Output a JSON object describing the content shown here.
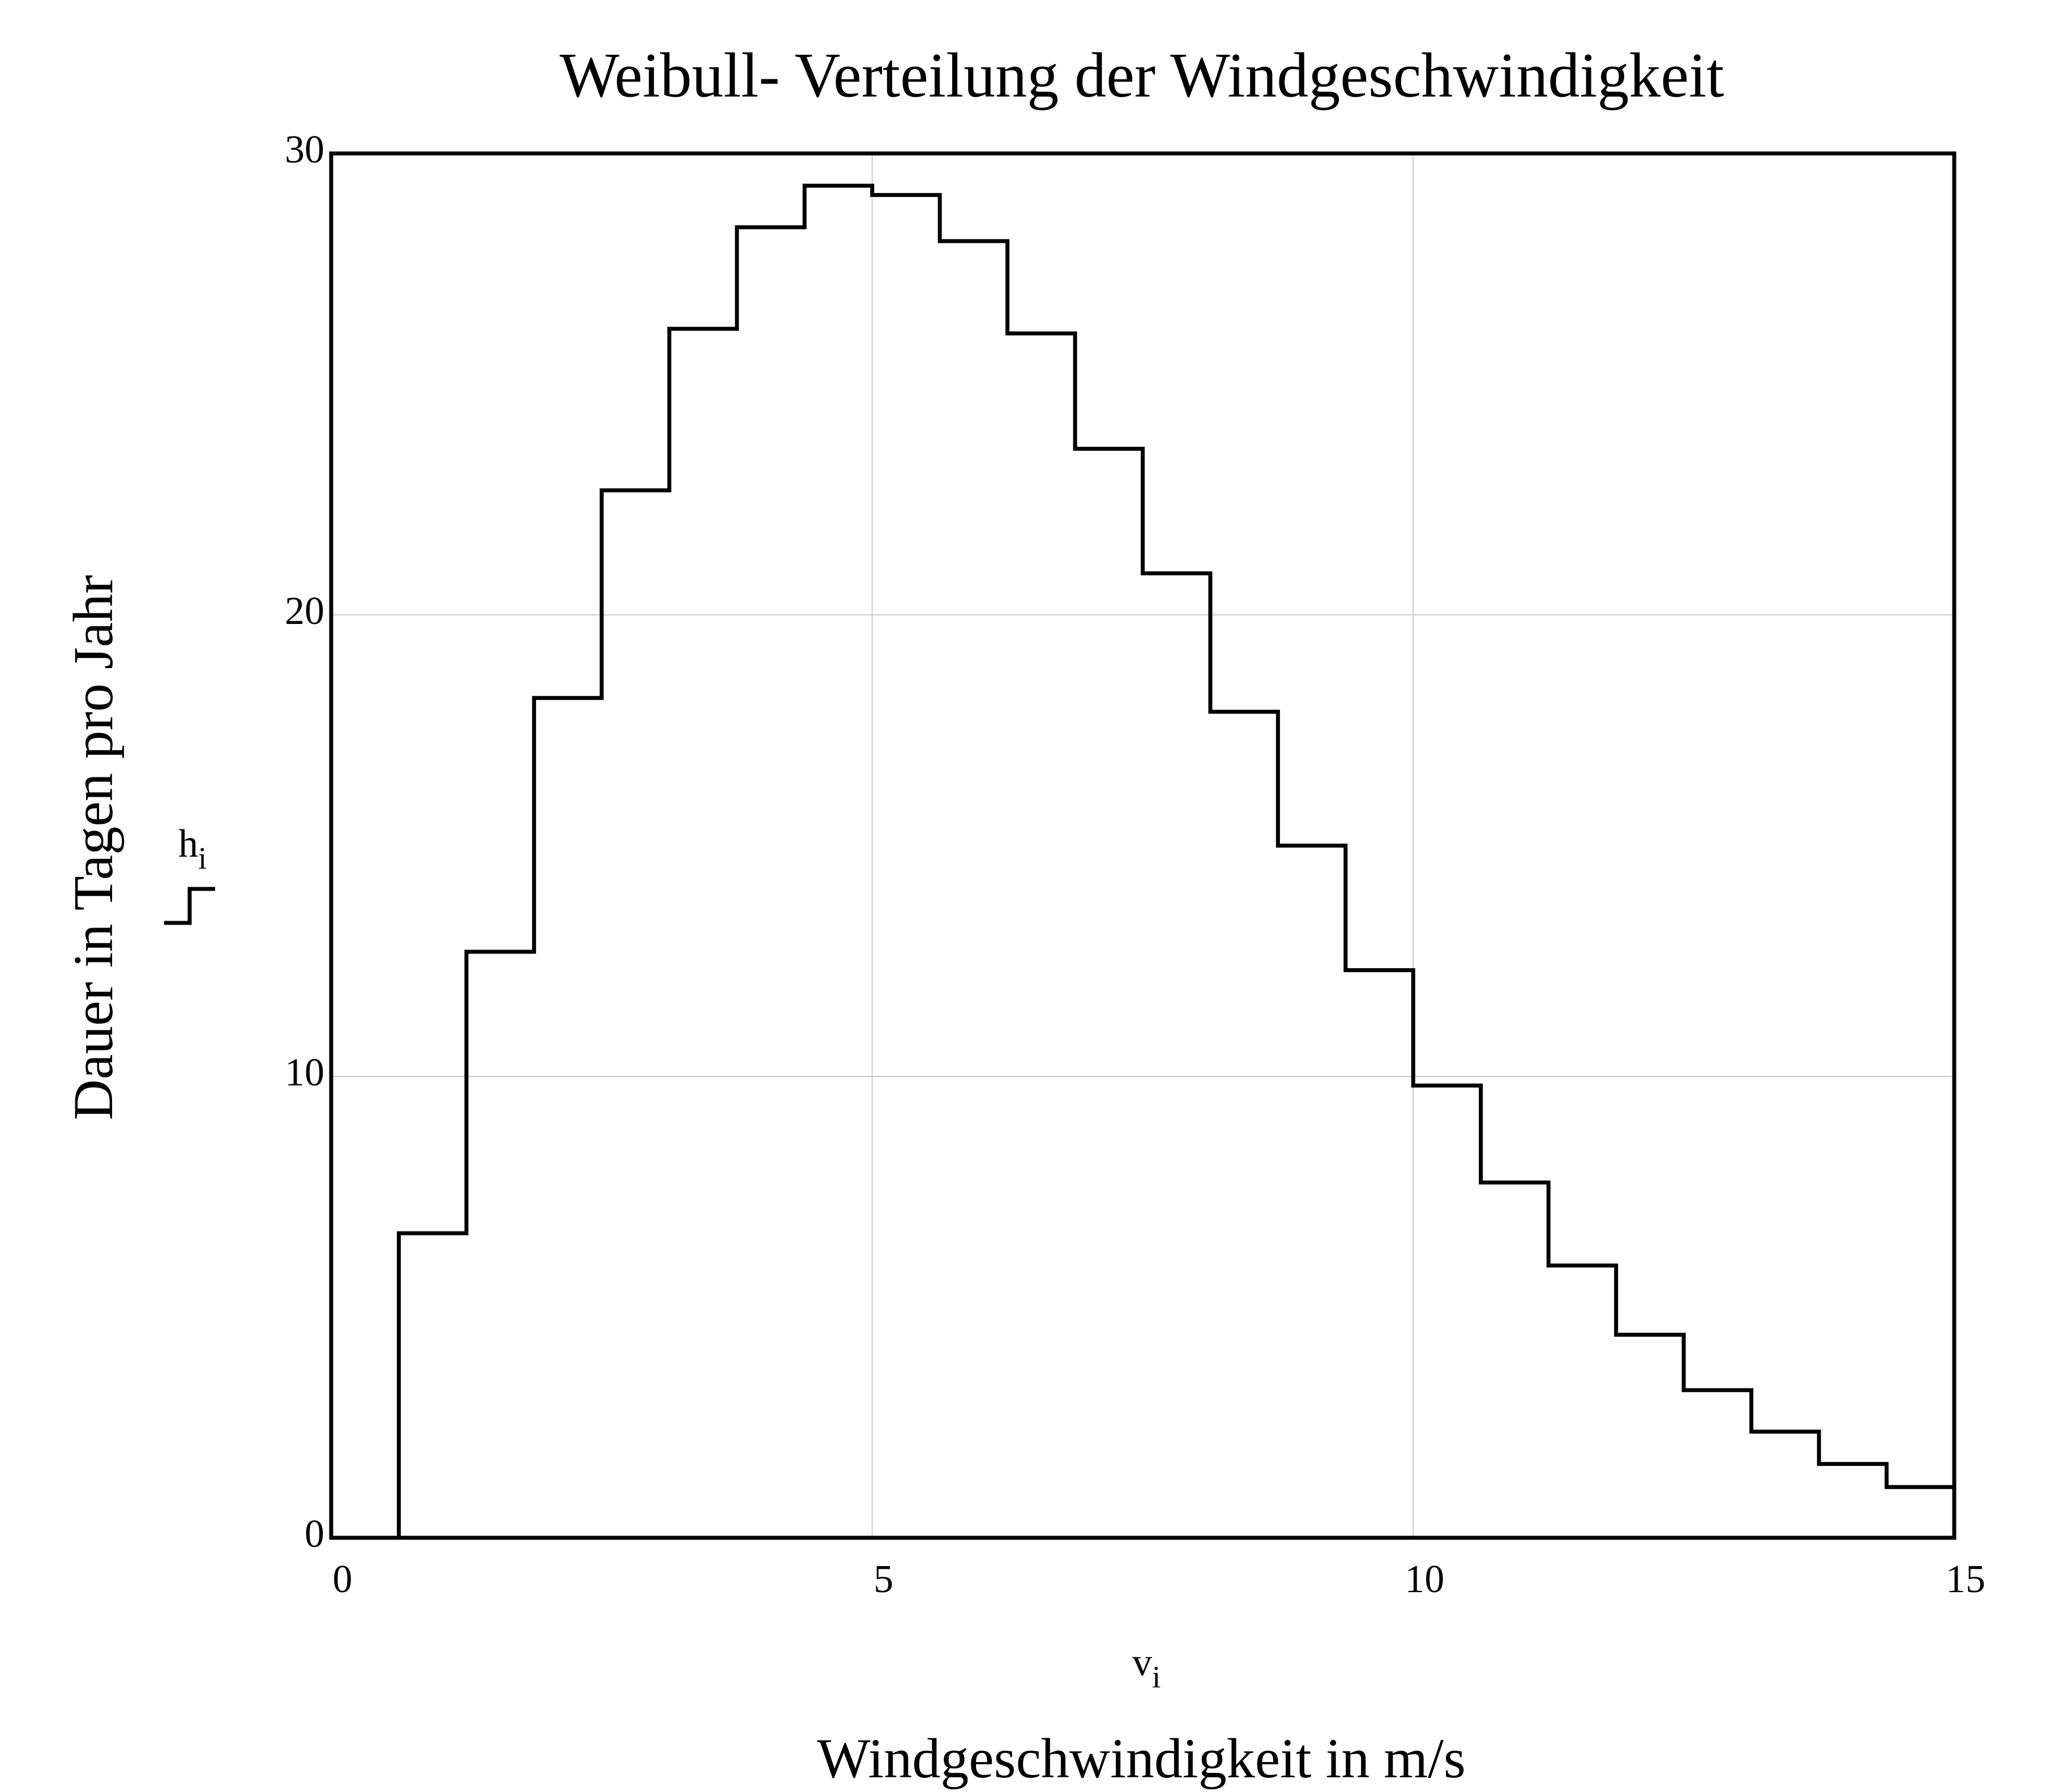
{
  "chart_data": {
    "type": "step",
    "title": "Weibull- Verteilung der Windgeschwindigkeit",
    "x_label": "Windgeschwindigkeit in m/s",
    "y_label": "Dauer in Tagen pro Jahr",
    "x_variable": {
      "base": "v",
      "sub": "i"
    },
    "y_variable": {
      "base": "h",
      "sub": "i"
    },
    "x": [
      0,
      0.625,
      1.25,
      1.875,
      2.5,
      3.125,
      3.75,
      4.375,
      5.0,
      5.625,
      6.25,
      6.875,
      7.5,
      8.125,
      8.75,
      9.375,
      10.0,
      10.625,
      11.25,
      11.875,
      12.5,
      13.125,
      13.75,
      14.375
    ],
    "values": [
      0,
      6.6,
      12.7,
      18.2,
      22.7,
      26.2,
      28.4,
      29.3,
      29.1,
      28.1,
      26.1,
      23.6,
      20.9,
      17.9,
      15.0,
      12.3,
      9.8,
      7.7,
      5.9,
      4.4,
      3.2,
      2.3,
      1.6,
      1.1
    ],
    "color": "#000000",
    "xlim": [
      0,
      15
    ],
    "xticks": [
      0,
      5,
      10,
      15
    ],
    "ylim": [
      0,
      30
    ],
    "yticks": [
      0,
      10,
      20,
      30
    ],
    "grid": true
  }
}
